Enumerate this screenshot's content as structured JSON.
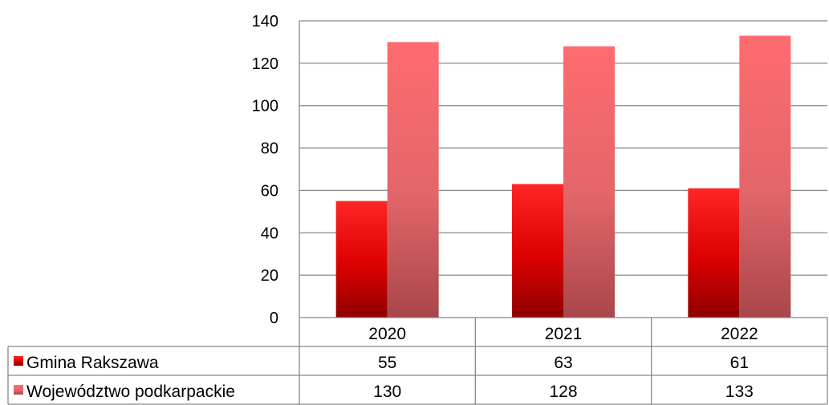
{
  "chart_data": {
    "type": "bar",
    "categories": [
      "2020",
      "2021",
      "2022"
    ],
    "series": [
      {
        "name": "Gmina Rakszawa",
        "values": [
          55,
          63,
          61
        ],
        "color": "#e00000"
      },
      {
        "name": "Województwo podkarpackie",
        "values": [
          130,
          128,
          133
        ],
        "color": "#f26a6e"
      }
    ],
    "y_ticks": [
      "0",
      "20",
      "40",
      "60",
      "80",
      "100",
      "120",
      "140"
    ],
    "ylim": [
      0,
      140
    ],
    "grid": true,
    "legend": "data-table"
  }
}
